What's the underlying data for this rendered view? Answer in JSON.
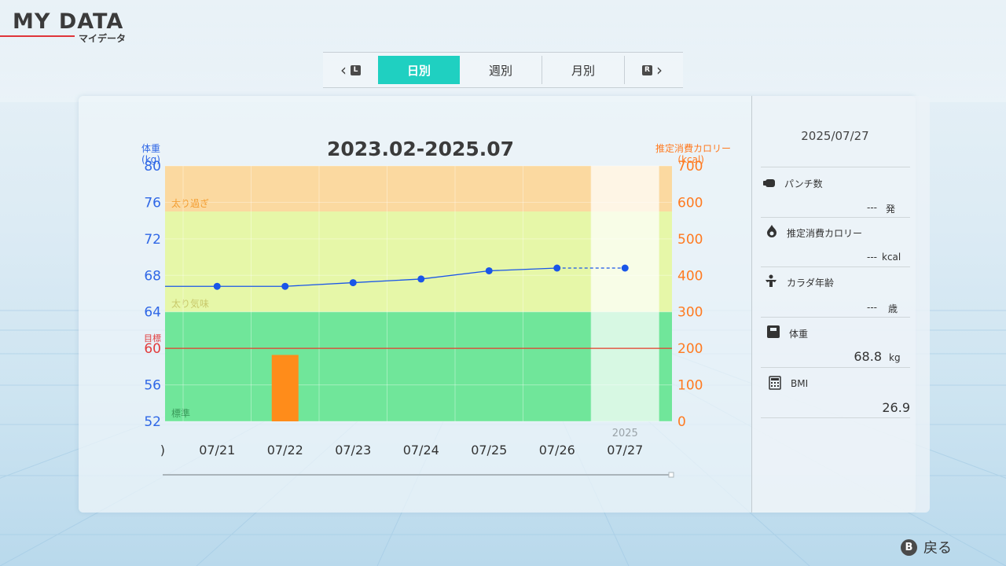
{
  "header": {
    "title": "MY DATA",
    "subtitle": "マイデータ"
  },
  "tabs": {
    "prev_key": "L",
    "next_key": "R",
    "items": [
      {
        "label": "日別",
        "active": true
      },
      {
        "label": "週別",
        "active": false
      },
      {
        "label": "月別",
        "active": false
      }
    ]
  },
  "chart_data": {
    "type": "line",
    "title": "2023.02-2025.07",
    "y_left_label_1": "体重",
    "y_left_label_2": "(kg)",
    "y_right_label_1": "推定消費カロリー",
    "y_right_label_2": "(kcal)",
    "ylim_left": [
      52,
      80
    ],
    "ylim_right": [
      0,
      700
    ],
    "y_left_ticks": [
      "80",
      "76",
      "72",
      "68",
      "64",
      "60",
      "56",
      "52"
    ],
    "y_right_ticks": [
      "700",
      "600",
      "500",
      "400",
      "300",
      "200",
      "100",
      "0"
    ],
    "goal_label": "目標",
    "goal_value": 60,
    "zones": [
      {
        "label": "太り過ぎ",
        "from": 75,
        "to": 80,
        "color": "#fbd9a0"
      },
      {
        "label": "太り気味",
        "from": 64,
        "to": 75,
        "color": "#e6f7a8"
      },
      {
        "label": "標準",
        "from": 52,
        "to": 64,
        "color": "#70e69a"
      }
    ],
    "x_first_partial": ")",
    "x_labels": [
      "07/21",
      "07/22",
      "07/23",
      "07/24",
      "07/25",
      "07/26",
      "07/27"
    ],
    "year_label": "2025",
    "series": [
      {
        "name": "体重",
        "color": "#1a56e8",
        "points": [
          {
            "x": "07/21",
            "y": 66.8
          },
          {
            "x": "07/22",
            "y": 66.8
          },
          {
            "x": "07/23",
            "y": 67.2
          },
          {
            "x": "07/24",
            "y": 67.6
          },
          {
            "x": "07/25",
            "y": 68.5
          },
          {
            "x": "07/26",
            "y": 68.8
          },
          {
            "x": "07/27",
            "y": 68.8
          }
        ]
      },
      {
        "name": "推定消費カロリー",
        "color": "#ff8c1a",
        "type": "bar",
        "points": [
          {
            "x": "07/22",
            "y": 182
          }
        ]
      }
    ]
  },
  "info": {
    "date": "2025/07/27",
    "punch_label": "パンチ数",
    "punch_value": "---",
    "punch_unit": "発",
    "calorie_label": "推定消費カロリー",
    "calorie_value": "---",
    "calorie_unit": "kcal",
    "body_age_label": "カラダ年齢",
    "body_age_value": "---",
    "body_age_unit": "歳",
    "weight_label": "体重",
    "weight_value": "68.8",
    "weight_unit": "kg",
    "bmi_label": "BMI",
    "bmi_value": "26.9"
  },
  "footer": {
    "button": "B",
    "label": "戻る"
  },
  "icons": [
    "chevron-left-icon",
    "chevron-right-icon",
    "punch-icon",
    "flame-icon",
    "muscle-icon",
    "scale-icon",
    "calculator-icon"
  ]
}
